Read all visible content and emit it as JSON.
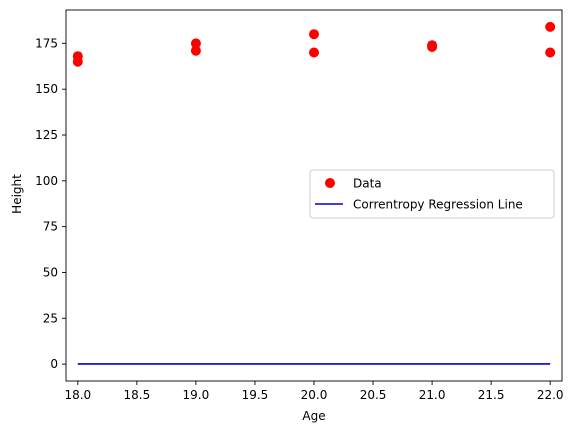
{
  "chart_data": {
    "type": "scatter",
    "xlabel": "Age",
    "ylabel": "Height",
    "xlim": [
      17.9,
      22.1
    ],
    "ylim": [
      -9.2,
      193.2
    ],
    "xticks": [
      "18.0",
      "18.5",
      "19.0",
      "19.5",
      "20.0",
      "20.5",
      "21.0",
      "21.5",
      "22.0"
    ],
    "yticks": [
      "0",
      "25",
      "50",
      "75",
      "100",
      "125",
      "150",
      "175"
    ],
    "grid": false,
    "legend_position": "center-right",
    "series": [
      {
        "name": "Data",
        "kind": "scatter",
        "color": "#ff0000",
        "points": [
          {
            "x": 18,
            "y": 168
          },
          {
            "x": 18,
            "y": 165
          },
          {
            "x": 19,
            "y": 175
          },
          {
            "x": 19,
            "y": 171
          },
          {
            "x": 20,
            "y": 180
          },
          {
            "x": 20,
            "y": 170
          },
          {
            "x": 21,
            "y": 174
          },
          {
            "x": 21,
            "y": 173
          },
          {
            "x": 22,
            "y": 184
          },
          {
            "x": 22,
            "y": 170
          }
        ]
      },
      {
        "name": "Correntropy Regression Line",
        "kind": "line",
        "color": "#0000cc",
        "points": [
          {
            "x": 18,
            "y": 0.1
          },
          {
            "x": 22,
            "y": 0.1
          }
        ]
      }
    ]
  }
}
